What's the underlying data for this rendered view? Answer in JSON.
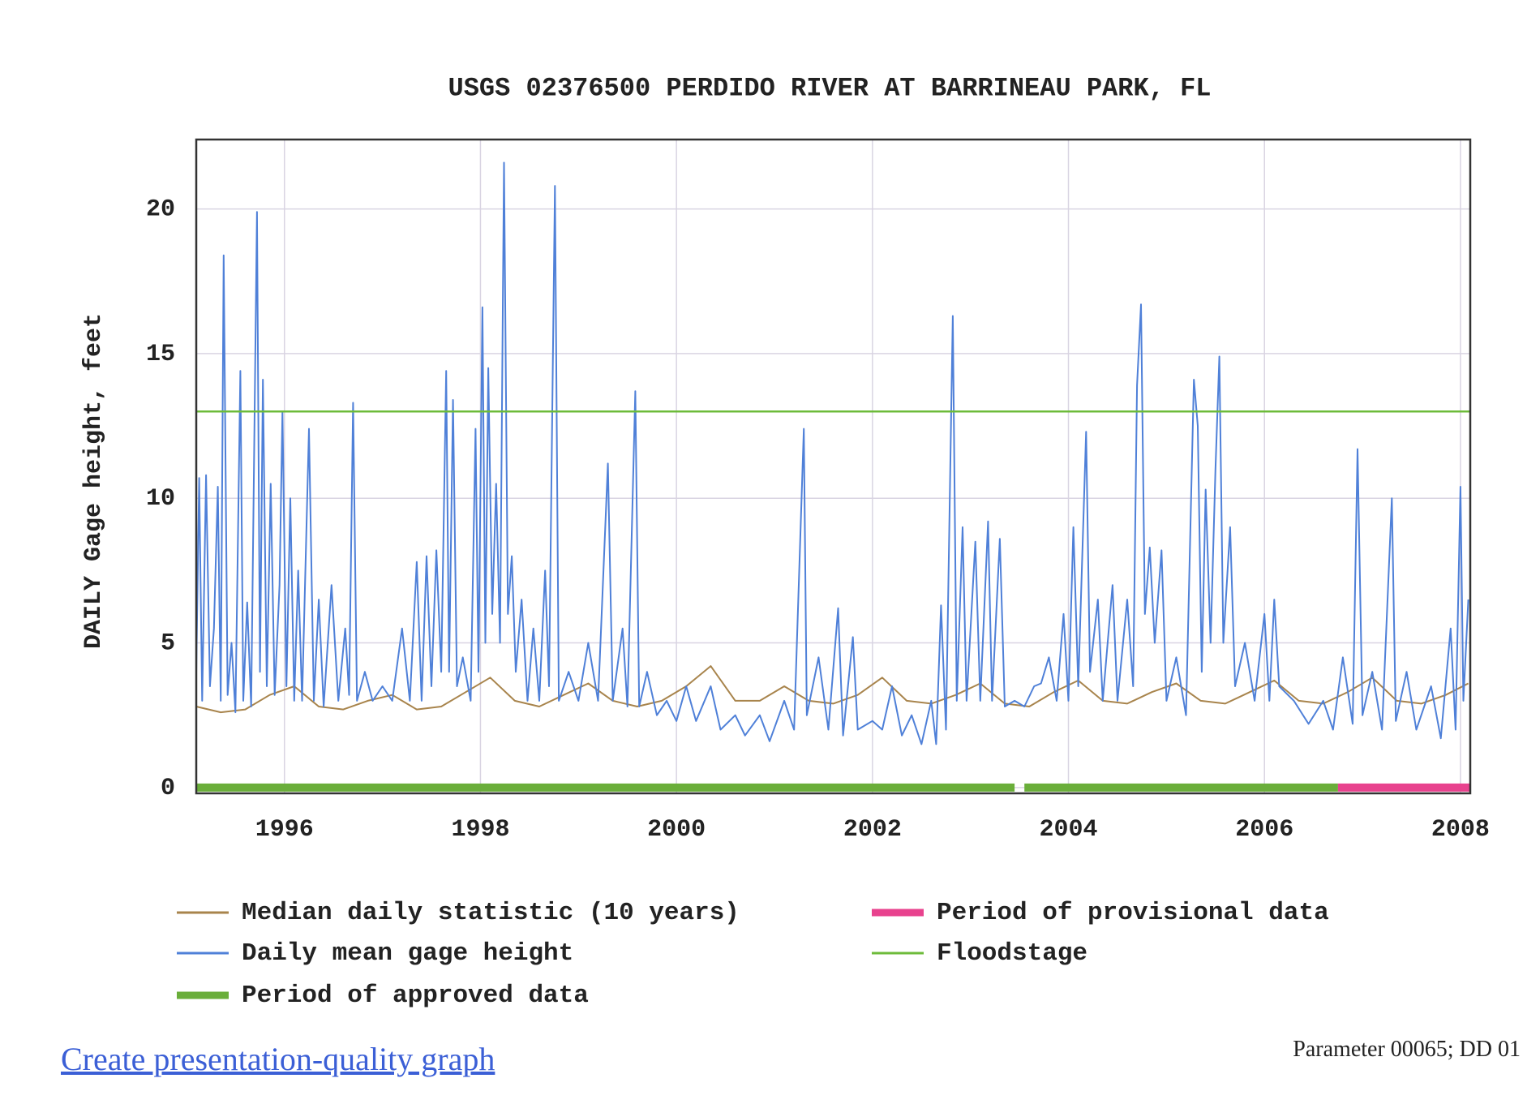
{
  "chart_data": {
    "type": "line",
    "title": "USGS 02376500 PERDIDO RIVER AT BARRINEAU PARK, FL",
    "ylabel": "DAILY Gage height, feet",
    "xlim": [
      1995.1,
      2008.1
    ],
    "xticks": [
      1996,
      1998,
      2000,
      2002,
      2004,
      2006,
      2008
    ],
    "ylim": [
      -0.2,
      22.4
    ],
    "yticks": [
      0,
      5,
      10,
      15,
      20
    ],
    "grid": true,
    "series": [
      {
        "name": "Median daily statistic (10 years)",
        "color": "#a8844c",
        "x": [
          1995.1,
          1995.35,
          1995.6,
          1995.85,
          1996.1,
          1996.35,
          1996.6,
          1996.85,
          1997.1,
          1997.35,
          1997.6,
          1997.85,
          1998.1,
          1998.35,
          1998.6,
          1998.85,
          1999.1,
          1999.35,
          1999.6,
          1999.85,
          2000.1,
          2000.35,
          2000.6,
          2000.85,
          2001.1,
          2001.35,
          2001.6,
          2001.85,
          2002.1,
          2002.35,
          2002.6,
          2002.85,
          2003.1,
          2003.35,
          2003.6,
          2003.85,
          2004.1,
          2004.35,
          2004.6,
          2004.85,
          2005.1,
          2005.35,
          2005.6,
          2005.85,
          2006.1,
          2006.35,
          2006.6,
          2006.85,
          2007.1,
          2007.35,
          2007.6,
          2007.85,
          2008.08
        ],
        "values": [
          2.8,
          2.6,
          2.7,
          3.2,
          3.5,
          2.8,
          2.7,
          3.0,
          3.2,
          2.7,
          2.8,
          3.3,
          3.8,
          3.0,
          2.8,
          3.2,
          3.6,
          3.0,
          2.8,
          3.0,
          3.5,
          4.2,
          3.0,
          3.0,
          3.5,
          3.0,
          2.9,
          3.2,
          3.8,
          3.0,
          2.9,
          3.2,
          3.6,
          2.9,
          2.8,
          3.3,
          3.7,
          3.0,
          2.9,
          3.3,
          3.6,
          3.0,
          2.9,
          3.3,
          3.7,
          3.0,
          2.9,
          3.3,
          3.8,
          3.0,
          2.9,
          3.2,
          3.6
        ]
      },
      {
        "name": "Daily mean gage height",
        "color": "#4f80d8",
        "x": [
          1995.1,
          1995.13,
          1995.16,
          1995.2,
          1995.24,
          1995.28,
          1995.32,
          1995.35,
          1995.38,
          1995.42,
          1995.46,
          1995.5,
          1995.55,
          1995.58,
          1995.62,
          1995.66,
          1995.72,
          1995.75,
          1995.78,
          1995.82,
          1995.86,
          1995.9,
          1995.95,
          1995.98,
          1996.02,
          1996.06,
          1996.1,
          1996.14,
          1996.18,
          1996.25,
          1996.3,
          1996.35,
          1996.4,
          1996.48,
          1996.55,
          1996.62,
          1996.66,
          1996.7,
          1996.74,
          1996.82,
          1996.9,
          1997.0,
          1997.1,
          1997.2,
          1997.28,
          1997.35,
          1997.4,
          1997.45,
          1997.5,
          1997.55,
          1997.6,
          1997.65,
          1997.68,
          1997.72,
          1997.76,
          1997.82,
          1997.9,
          1997.95,
          1997.98,
          1998.02,
          1998.05,
          1998.08,
          1998.12,
          1998.16,
          1998.2,
          1998.24,
          1998.28,
          1998.32,
          1998.36,
          1998.42,
          1998.48,
          1998.54,
          1998.6,
          1998.66,
          1998.7,
          1998.76,
          1998.8,
          1998.9,
          1999.0,
          1999.1,
          1999.2,
          1999.3,
          1999.35,
          1999.45,
          1999.5,
          1999.58,
          1999.62,
          1999.7,
          1999.8,
          1999.9,
          2000.0,
          2000.1,
          2000.2,
          2000.35,
          2000.45,
          2000.6,
          2000.7,
          2000.85,
          2000.95,
          2001.1,
          2001.2,
          2001.3,
          2001.33,
          2001.45,
          2001.55,
          2001.65,
          2001.7,
          2001.8,
          2001.85,
          2002.0,
          2002.1,
          2002.2,
          2002.3,
          2002.4,
          2002.5,
          2002.6,
          2002.65,
          2002.7,
          2002.75,
          2002.82,
          2002.86,
          2002.92,
          2002.96,
          2003.05,
          2003.1,
          2003.18,
          2003.22,
          2003.3,
          2003.35,
          2003.45,
          2003.55,
          2003.65,
          2003.72,
          2003.8,
          2003.88,
          2003.95,
          2004.0,
          2004.05,
          2004.1,
          2004.18,
          2004.22,
          2004.3,
          2004.35,
          2004.45,
          2004.5,
          2004.6,
          2004.66,
          2004.7,
          2004.74,
          2004.78,
          2004.83,
          2004.88,
          2004.95,
          2005.0,
          2005.1,
          2005.2,
          2005.28,
          2005.32,
          2005.36,
          2005.4,
          2005.45,
          2005.5,
          2005.54,
          2005.58,
          2005.65,
          2005.7,
          2005.8,
          2005.9,
          2006.0,
          2006.05,
          2006.1,
          2006.15,
          2006.3,
          2006.45,
          2006.6,
          2006.7,
          2006.8,
          2006.9,
          2006.95,
          2007.0,
          2007.1,
          2007.2,
          2007.3,
          2007.34,
          2007.45,
          2007.55,
          2007.7,
          2007.8,
          2007.9,
          2007.95,
          2008.0,
          2008.03,
          2008.08
        ],
        "values": [
          4,
          10.7,
          3,
          10.8,
          3.5,
          5.5,
          10.4,
          3,
          18.4,
          3.2,
          5,
          2.6,
          14.4,
          3,
          6.4,
          2.8,
          19.9,
          4,
          14.1,
          3.5,
          10.5,
          3.2,
          7,
          13,
          3.5,
          10,
          3,
          7.5,
          3,
          12.4,
          3,
          6.5,
          2.8,
          7,
          3,
          5.5,
          3.2,
          13.3,
          3,
          4,
          3,
          3.5,
          3,
          5.5,
          3,
          7.8,
          3,
          8,
          3.5,
          8.2,
          4,
          14.4,
          4,
          13.4,
          3.5,
          4.5,
          3,
          12.4,
          4,
          16.6,
          5,
          14.5,
          6,
          10.5,
          5,
          21.6,
          6,
          8,
          4,
          6.5,
          3,
          5.5,
          3,
          7.5,
          3.5,
          20.8,
          3,
          4,
          3,
          5,
          3,
          11.2,
          3,
          5.5,
          2.8,
          13.7,
          2.8,
          4,
          2.5,
          3,
          2.3,
          3.5,
          2.3,
          3.5,
          2,
          2.5,
          1.8,
          2.5,
          1.6,
          3,
          2,
          12.4,
          2.5,
          4.5,
          2,
          6.2,
          1.8,
          5.2,
          2,
          2.3,
          2,
          3.5,
          1.8,
          2.5,
          1.5,
          3,
          1.5,
          6.3,
          2,
          16.3,
          3,
          9,
          3,
          8.5,
          3,
          9.2,
          3,
          8.6,
          2.8,
          3,
          2.8,
          3.5,
          3.6,
          4.5,
          3,
          6,
          3,
          9,
          3.5,
          12.3,
          4,
          6.5,
          3,
          7,
          3,
          6.5,
          3.5,
          13.9,
          16.7,
          6,
          8.3,
          5,
          8.2,
          3,
          4.5,
          2.5,
          14.1,
          12.5,
          4,
          10.3,
          5,
          11,
          14.9,
          5,
          9,
          3.5,
          5,
          3,
          6,
          3,
          6.5,
          3.5,
          3,
          2.2,
          3,
          2,
          4.5,
          2.2,
          11.7,
          2.5,
          4,
          2,
          10,
          2.3,
          4,
          2,
          3.5,
          1.7,
          5.5,
          2,
          10.4,
          3,
          6.5
        ]
      },
      {
        "name": "Period of approved data",
        "color": "#6aae3a",
        "x": [
          1995.1,
          2003.45,
          2003.5,
          2003.55,
          2006.75
        ],
        "values": [
          0,
          0,
          null,
          0,
          0
        ]
      },
      {
        "name": "Period of provisional data",
        "color": "#e8428e",
        "x": [
          2006.75,
          2008.1
        ],
        "values": [
          0,
          0
        ]
      },
      {
        "name": "Floodstage",
        "color": "#6dbb3a",
        "x": [
          1995.1,
          2008.1
        ],
        "values": [
          13,
          13
        ]
      }
    ]
  },
  "link": "Create presentation-quality graph",
  "footnote": "Parameter 00065; DD 01"
}
